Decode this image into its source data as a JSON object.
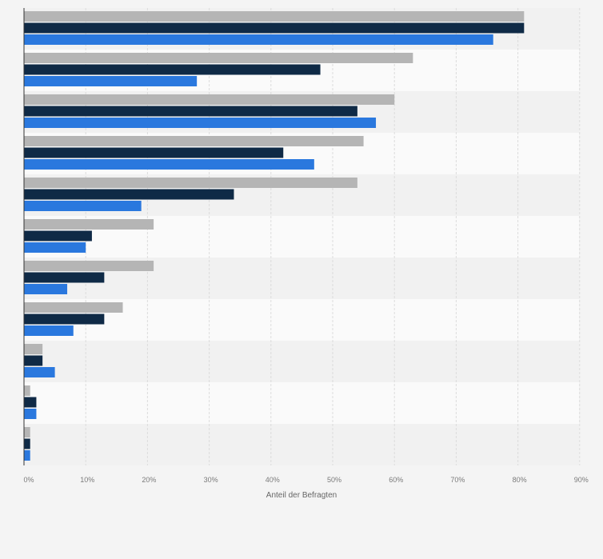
{
  "chart_data": {
    "type": "bar",
    "orientation": "horizontal",
    "title": "",
    "xlabel": "Anteil der Befragten",
    "ylabel": "",
    "xlim": [
      0,
      90
    ],
    "x_ticks": [
      0,
      10,
      20,
      30,
      40,
      50,
      60,
      70,
      80,
      90
    ],
    "x_tick_labels": [
      "0%",
      "10%",
      "20%",
      "30%",
      "40%",
      "50%",
      "60%",
      "70%",
      "80%",
      "90%"
    ],
    "categories": [
      "",
      "",
      "",
      "",
      "",
      "",
      "",
      "",
      "",
      "",
      ""
    ],
    "series": [
      {
        "name": "",
        "color": "#b5b5b5",
        "values": [
          81,
          63,
          60,
          55,
          54,
          21,
          21,
          16,
          3,
          1,
          1
        ]
      },
      {
        "name": "",
        "color": "#0f2a46",
        "values": [
          81,
          48,
          54,
          42,
          34,
          11,
          13,
          13,
          3,
          2,
          1
        ]
      },
      {
        "name": "",
        "color": "#2a78de",
        "values": [
          76,
          28,
          57,
          47,
          19,
          10,
          7,
          8,
          5,
          2,
          1
        ]
      }
    ],
    "grid": true,
    "legend": "none"
  }
}
